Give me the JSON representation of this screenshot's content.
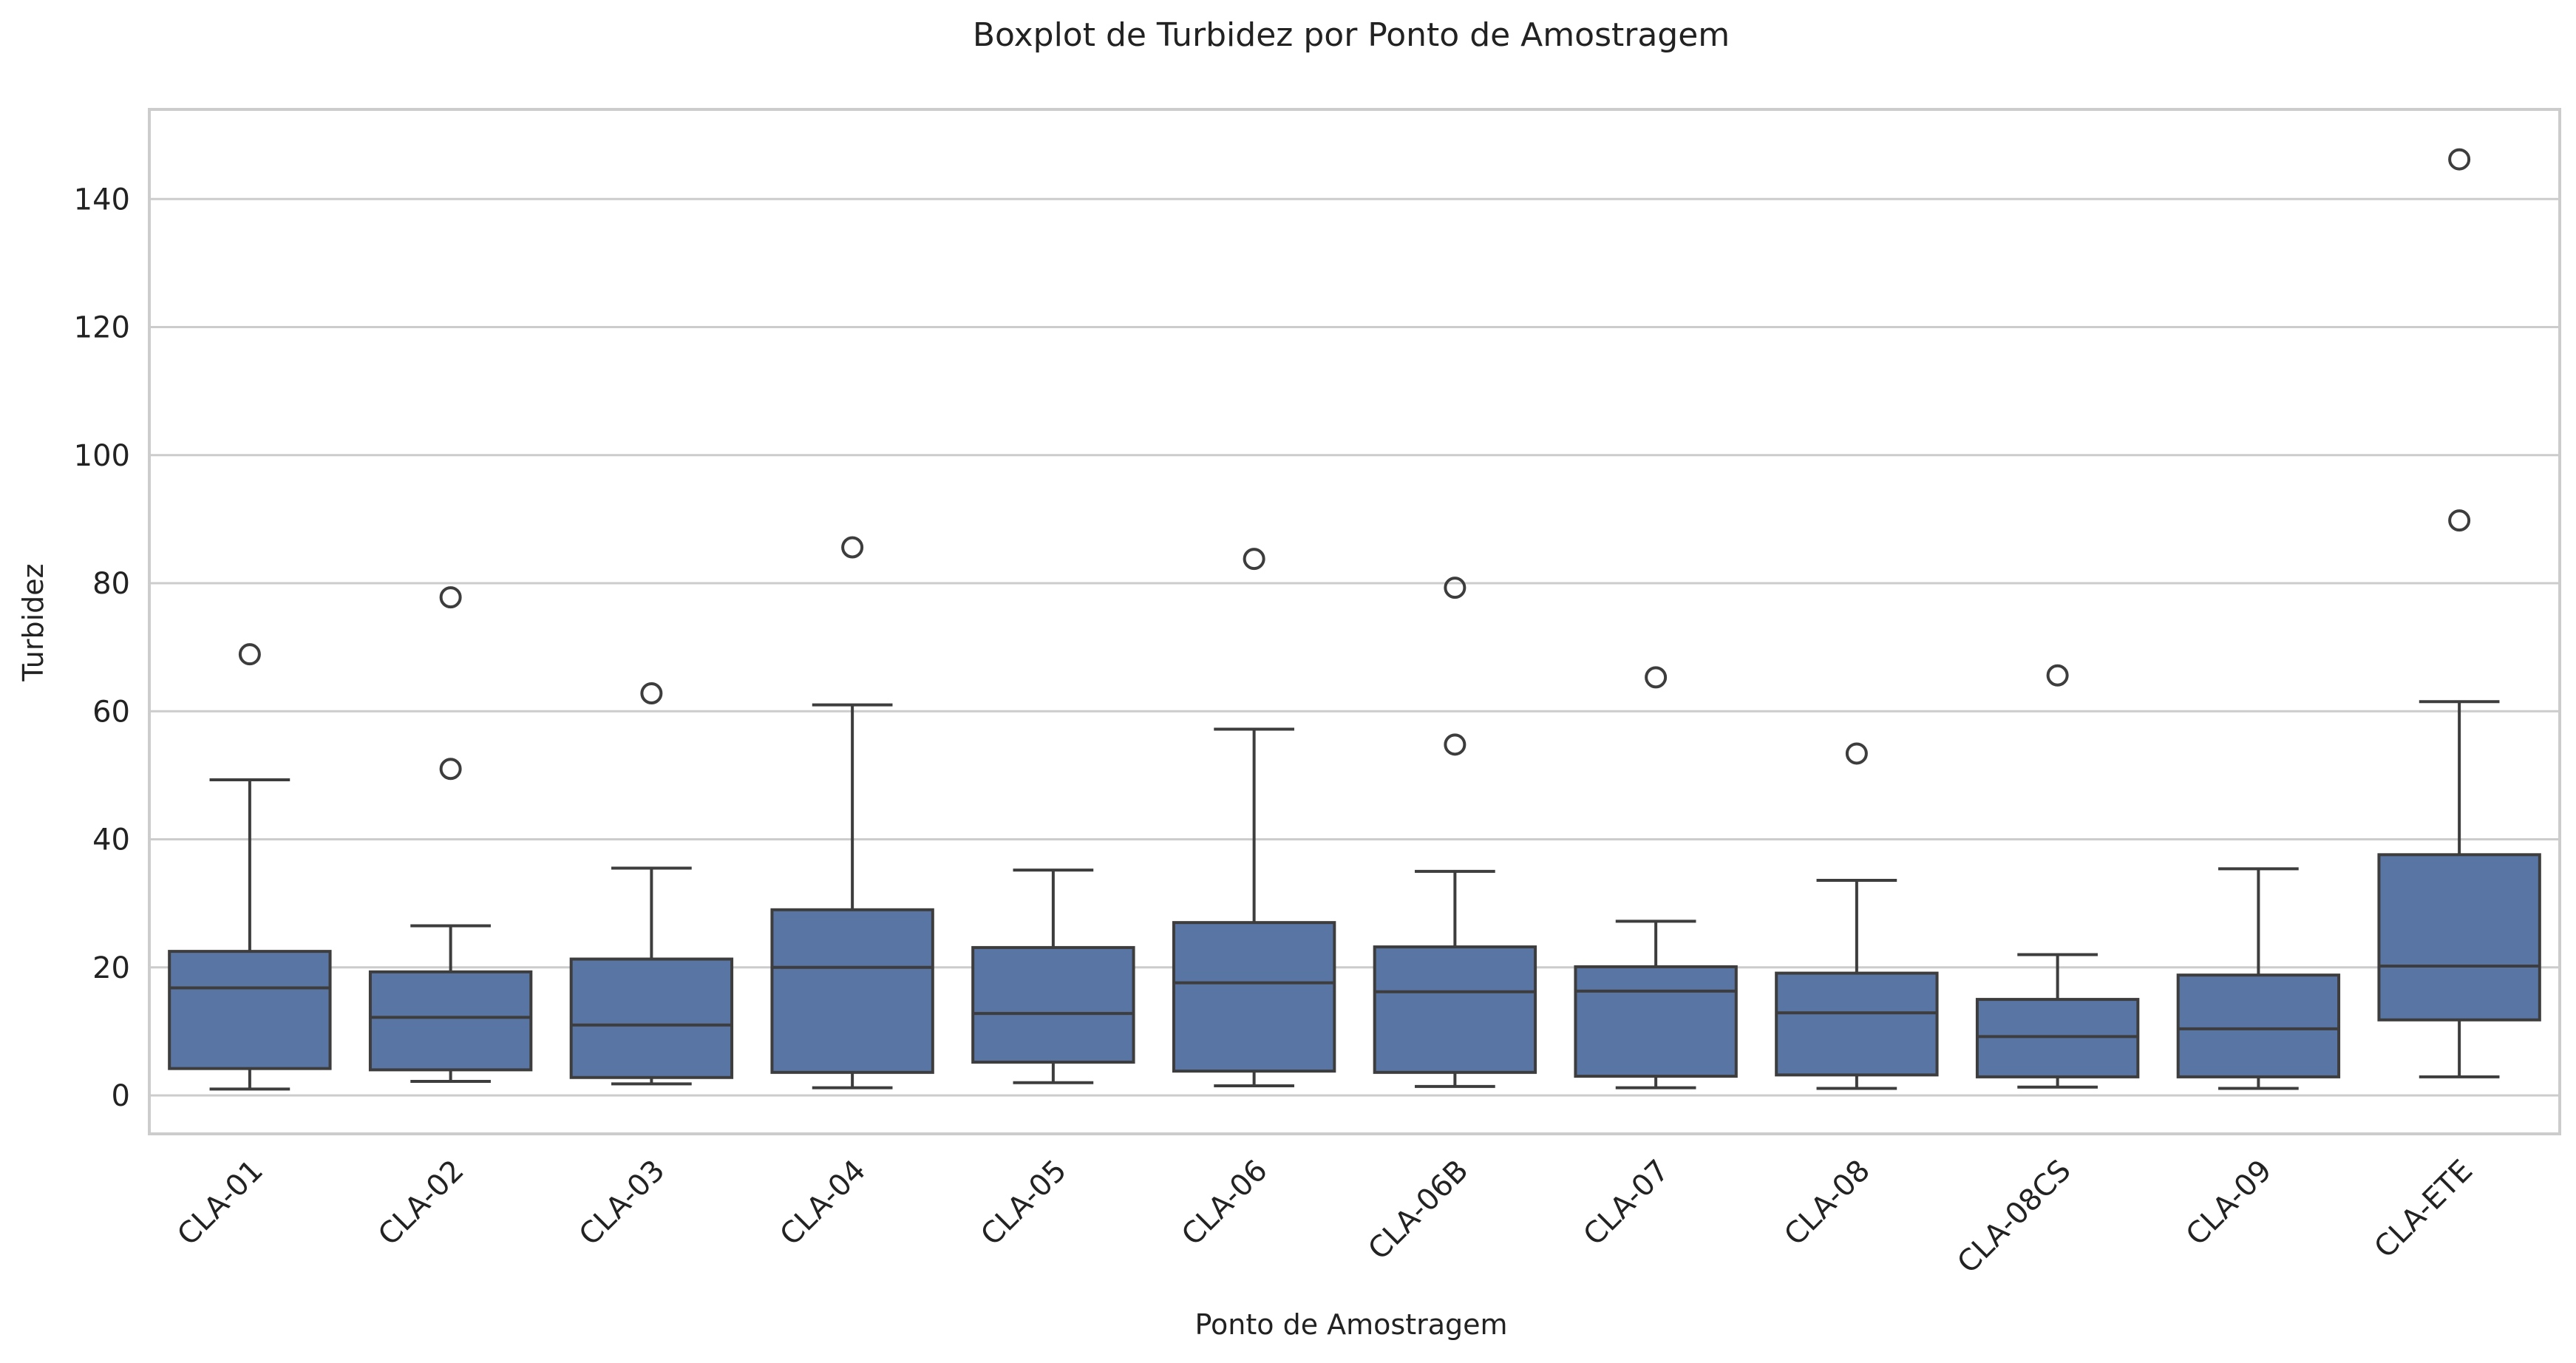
{
  "chart_data": {
    "type": "box",
    "title": "Boxplot de Turbidez por Ponto de Amostragem",
    "xlabel": "Ponto de Amostragem",
    "ylabel": "Turbidez",
    "ylim": [
      -6,
      154
    ],
    "yticks": [
      0,
      20,
      40,
      60,
      80,
      100,
      120,
      140
    ],
    "grid": true,
    "colors": {
      "box": "#5875a4",
      "line": "#3d3d3d",
      "grid": "#cccccc"
    },
    "categories": [
      "CLA-01",
      "CLA-02",
      "CLA-03",
      "CLA-04",
      "CLA-05",
      "CLA-06",
      "CLA-06B",
      "CLA-07",
      "CLA-08",
      "CLA-08CS",
      "CLA-09",
      "CLA-ETE"
    ],
    "boxes": [
      {
        "category": "CLA-01",
        "whislo": 1.0,
        "q1": 4.2,
        "median": 16.8,
        "q3": 22.5,
        "whishi": 49.3,
        "fliers": [
          68.9
        ]
      },
      {
        "category": "CLA-02",
        "whislo": 2.2,
        "q1": 4.0,
        "median": 12.2,
        "q3": 19.3,
        "whishi": 26.5,
        "fliers": [
          51.0,
          77.8
        ]
      },
      {
        "category": "CLA-03",
        "whislo": 1.8,
        "q1": 2.8,
        "median": 11.0,
        "q3": 21.3,
        "whishi": 35.5,
        "fliers": [
          62.8
        ]
      },
      {
        "category": "CLA-04",
        "whislo": 1.2,
        "q1": 3.6,
        "median": 20.0,
        "q3": 29.0,
        "whishi": 61.0,
        "fliers": [
          85.6
        ]
      },
      {
        "category": "CLA-05",
        "whislo": 2.0,
        "q1": 5.2,
        "median": 12.8,
        "q3": 23.1,
        "whishi": 35.2,
        "fliers": []
      },
      {
        "category": "CLA-06",
        "whislo": 1.5,
        "q1": 3.8,
        "median": 17.6,
        "q3": 27.0,
        "whishi": 57.2,
        "fliers": [
          83.8
        ]
      },
      {
        "category": "CLA-06B",
        "whislo": 1.4,
        "q1": 3.6,
        "median": 16.2,
        "q3": 23.2,
        "whishi": 35.0,
        "fliers": [
          54.8,
          79.3
        ]
      },
      {
        "category": "CLA-07",
        "whislo": 1.2,
        "q1": 3.0,
        "median": 16.3,
        "q3": 20.1,
        "whishi": 27.2,
        "fliers": [
          65.3
        ]
      },
      {
        "category": "CLA-08",
        "whislo": 1.1,
        "q1": 3.2,
        "median": 12.9,
        "q3": 19.1,
        "whishi": 33.6,
        "fliers": [
          53.4
        ]
      },
      {
        "category": "CLA-08CS",
        "whislo": 1.3,
        "q1": 2.9,
        "median": 9.2,
        "q3": 15.0,
        "whishi": 22.0,
        "fliers": [
          65.6
        ]
      },
      {
        "category": "CLA-09",
        "whislo": 1.1,
        "q1": 2.9,
        "median": 10.4,
        "q3": 18.8,
        "whishi": 35.4,
        "fliers": []
      },
      {
        "category": "CLA-ETE",
        "whislo": 2.9,
        "q1": 11.8,
        "median": 20.2,
        "q3": 37.6,
        "whishi": 61.5,
        "fliers": [
          89.8,
          146.2
        ]
      }
    ]
  }
}
